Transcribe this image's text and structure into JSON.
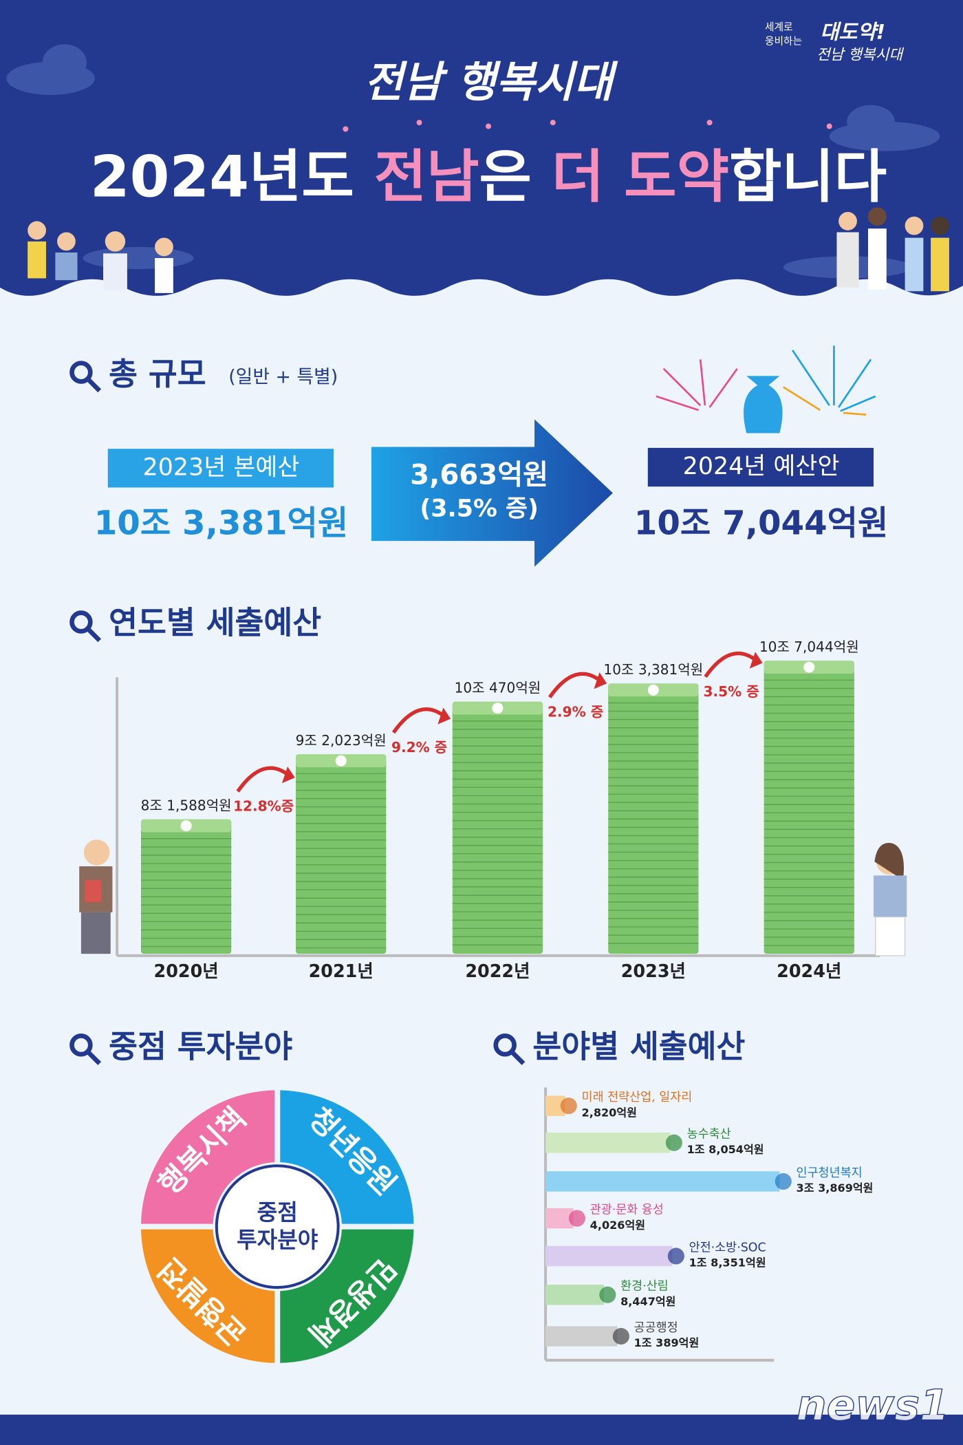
{
  "header": {
    "slogan": "전남 행복시대",
    "title_parts": [
      "2024년도 ",
      "전남",
      "은 ",
      "더 도약",
      "합니다"
    ],
    "corner": [
      "세계로",
      "웅비하는",
      "대도약!",
      "전남 행복시대"
    ]
  },
  "total": {
    "title": "총 규모",
    "subtitle": "(일반 + 특별)",
    "before": {
      "label": "2023년 본예산",
      "amount": "10조 3,381억원"
    },
    "increase": {
      "amount": "3,663억원",
      "rate": "(3.5% 증)"
    },
    "after": {
      "label": "2024년 예산안",
      "amount": "10조 7,044억원"
    }
  },
  "chart_data": [
    {
      "type": "bar",
      "title": "연도별 세출예산",
      "categories": [
        "2020년",
        "2021년",
        "2022년",
        "2023년",
        "2024년"
      ],
      "values": [
        81588,
        92023,
        100470,
        103381,
        107044
      ],
      "value_labels": [
        "8조 1,588억원",
        "9조 2,023억원",
        "10조 470억원",
        "10조 3,381억원",
        "10조 7,044억원"
      ],
      "annotations": [
        "12.8%증",
        "9.2% 증",
        "2.9% 증",
        "3.5% 증"
      ],
      "color": "#7cc46a",
      "ylim": [
        60000,
        110000
      ]
    },
    {
      "type": "hbar",
      "title": "분야별 세출예산",
      "categories": [
        "미래 전략산업, 일자리",
        "농수축산",
        "인구청년복지",
        "관광·문화 융성",
        "안전·소방·SOC",
        "환경·산림",
        "공공행정"
      ],
      "values": [
        2820,
        18054,
        33869,
        4026,
        18351,
        8447,
        10389
      ],
      "value_labels": [
        "2,820억원",
        "1조 8,054억원",
        "3조 3,869억원",
        "4,026억원",
        "1조 8,351억원",
        "8,447억원",
        "1조 389억원"
      ],
      "colors": [
        "#f8cf94",
        "#cfe8bf",
        "#8fd2f4",
        "#f5b7d0",
        "#d9ccef",
        "#b8e0b2",
        "#cfcfcf"
      ],
      "label_colors": [
        "#e0701f",
        "#2e8b3e",
        "#1f79c4",
        "#e0488a",
        "#23388f",
        "#2e8b3e",
        "#444444"
      ],
      "xlim": [
        0,
        36000
      ]
    }
  ],
  "focus": {
    "title": "중점 투자분야",
    "center": [
      "중점",
      "투자분야"
    ],
    "segments": [
      {
        "label": "행복시책",
        "color": "#ef6fa6"
      },
      {
        "label": "청년응원",
        "color": "#1ba2e5"
      },
      {
        "label": "민생경제",
        "color": "#1f9a4b"
      },
      {
        "label": "균형발전",
        "color": "#f39221"
      }
    ]
  },
  "watermark": "news1"
}
